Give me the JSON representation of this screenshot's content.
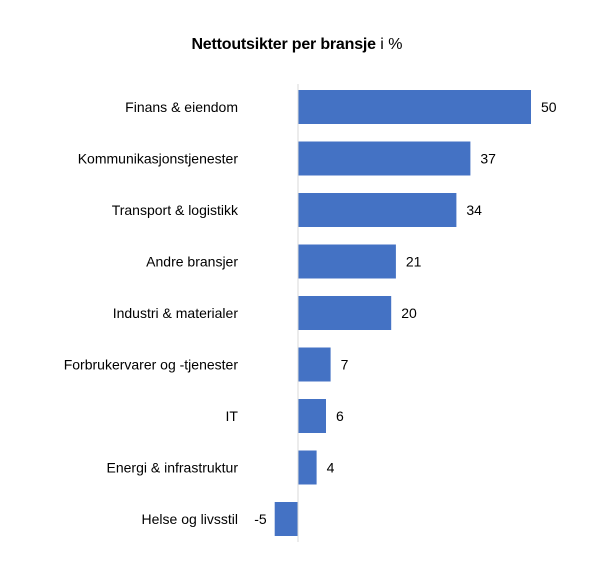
{
  "chart_data": {
    "type": "bar",
    "orientation": "horizontal",
    "title_bold": "Nettoutsikter per bransje",
    "title_normal": "i %",
    "categories": [
      "Finans & eiendom",
      "Kommunikasjonstjenester",
      "Transport & logistikk",
      "Andre bransjer",
      "Industri & materialer",
      "Forbrukervarer og -tjenester",
      "IT",
      "Energi & infrastruktur",
      "Helse og livsstil"
    ],
    "values": [
      50,
      37,
      34,
      21,
      20,
      7,
      6,
      4,
      -5
    ],
    "xlim": [
      -5,
      50
    ],
    "grid": false,
    "legend": "none",
    "bar_color": "#4472C4",
    "axis_color": "#D9D9D9"
  }
}
